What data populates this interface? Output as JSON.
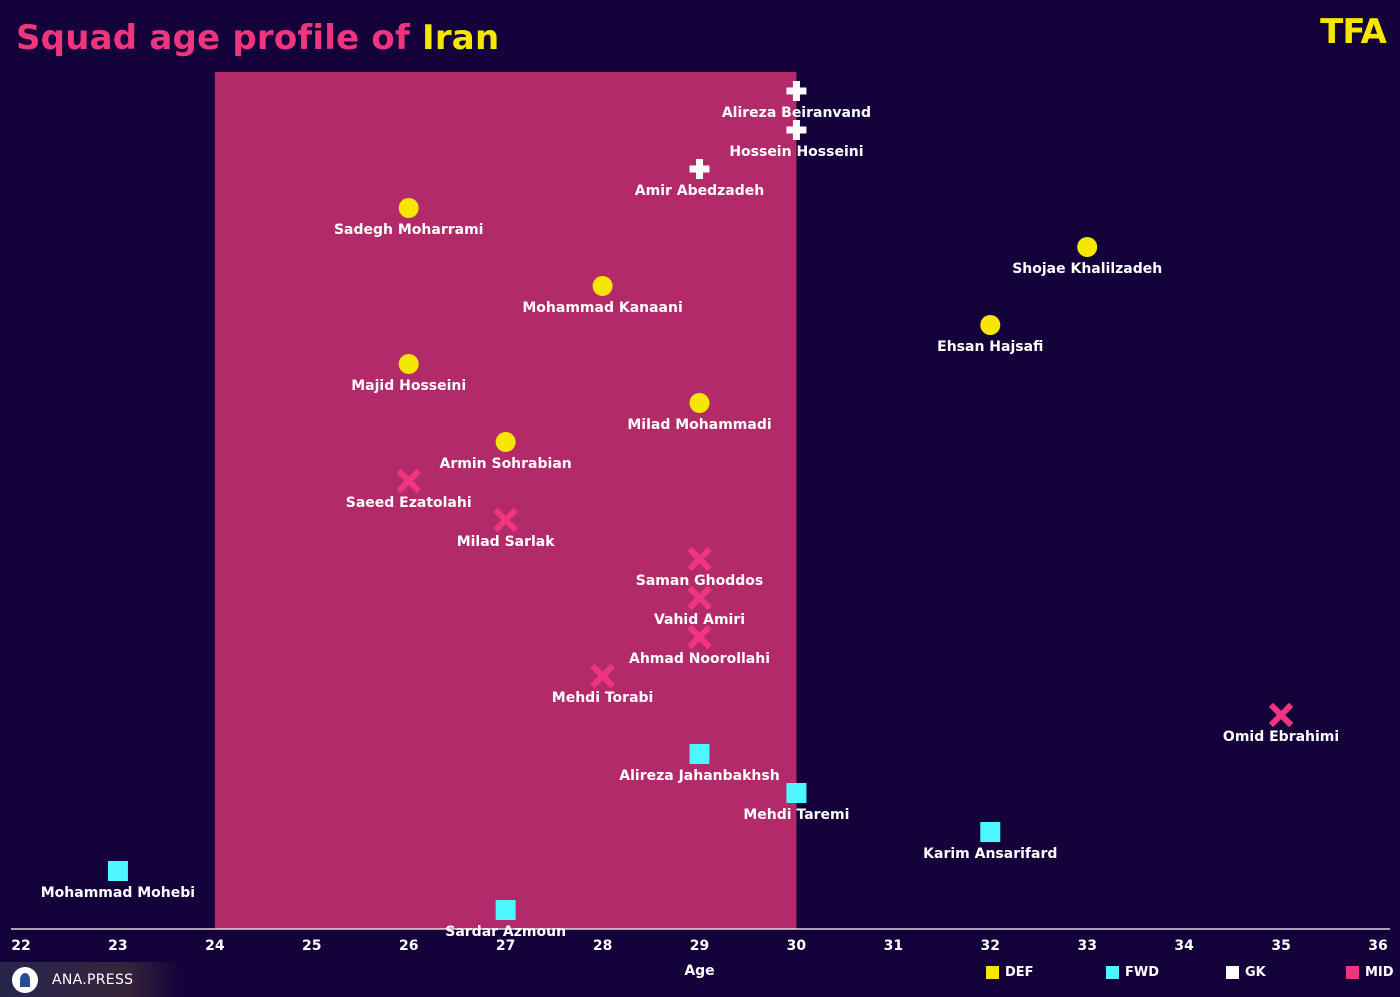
{
  "header": {
    "title_prefix": "Squad age profile of ",
    "title_country": "Iran",
    "logo": "TFA"
  },
  "watermark": {
    "text": "ANA.PRESS",
    "icon": "ana-press-logo-icon"
  },
  "colors": {
    "background": "#14023a",
    "highlight_band": "#b32a6a",
    "DEF": "#f6e600",
    "FWD": "#4cf7ff",
    "GK": "#ffffff",
    "MID": "#f0357e",
    "title": "#f0357e",
    "title_accent": "#f6e600"
  },
  "chart_data": {
    "type": "scatter",
    "title": "Squad age profile of Iran",
    "xlabel": "Age",
    "ylabel": "",
    "xlim": [
      22,
      36
    ],
    "x_ticks": [
      22,
      23,
      24,
      25,
      26,
      27,
      28,
      29,
      30,
      31,
      32,
      33,
      34,
      35,
      36
    ],
    "highlight_range": [
      24,
      30
    ],
    "legend": [
      {
        "name": "DEF",
        "marker": "circle"
      },
      {
        "name": "FWD",
        "marker": "square"
      },
      {
        "name": "GK",
        "marker": "plus"
      },
      {
        "name": "MID",
        "marker": "x"
      }
    ],
    "legend_position": "bottom-right",
    "grid": false,
    "points": [
      {
        "name": "Alireza Beiranvand",
        "age": 30,
        "position": "GK"
      },
      {
        "name": "Hossein Hosseini",
        "age": 30,
        "position": "GK"
      },
      {
        "name": "Amir Abedzadeh",
        "age": 29,
        "position": "GK"
      },
      {
        "name": "Sadegh Moharrami",
        "age": 26,
        "position": "DEF"
      },
      {
        "name": "Shojae Khalilzadeh",
        "age": 33,
        "position": "DEF"
      },
      {
        "name": "Mohammad Kanaani",
        "age": 28,
        "position": "DEF"
      },
      {
        "name": "Ehsan Hajsafi",
        "age": 32,
        "position": "DEF"
      },
      {
        "name": "Majid Hosseini",
        "age": 26,
        "position": "DEF"
      },
      {
        "name": "Milad Mohammadi",
        "age": 29,
        "position": "DEF"
      },
      {
        "name": "Armin Sohrabian",
        "age": 27,
        "position": "DEF"
      },
      {
        "name": "Saeed Ezatolahi",
        "age": 26,
        "position": "MID"
      },
      {
        "name": "Milad Sarlak",
        "age": 27,
        "position": "MID"
      },
      {
        "name": "Saman Ghoddos",
        "age": 29,
        "position": "MID"
      },
      {
        "name": "Vahid Amiri",
        "age": 29,
        "position": "MID"
      },
      {
        "name": "Ahmad Noorollahi",
        "age": 29,
        "position": "MID"
      },
      {
        "name": "Mehdi Torabi",
        "age": 28,
        "position": "MID"
      },
      {
        "name": "Omid Ebrahimi",
        "age": 35,
        "position": "MID"
      },
      {
        "name": "Alireza Jahanbakhsh",
        "age": 29,
        "position": "FWD"
      },
      {
        "name": "Mehdi Taremi",
        "age": 30,
        "position": "FWD"
      },
      {
        "name": "Karim Ansarifard",
        "age": 32,
        "position": "FWD"
      },
      {
        "name": "Mohammad Mohebi",
        "age": 23,
        "position": "FWD"
      },
      {
        "name": "Sardar Azmoun",
        "age": 27,
        "position": "FWD"
      }
    ]
  }
}
